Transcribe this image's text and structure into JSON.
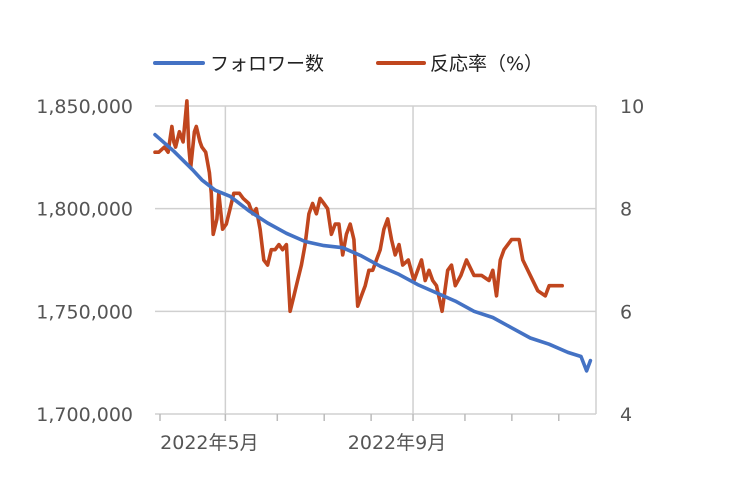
{
  "chart_data": {
    "type": "line",
    "title": "",
    "xlabel": "",
    "ylabel": "",
    "legend_position": "top-center",
    "grid": true,
    "x_tick_labels": [
      "2022年5月",
      "2022年9月"
    ],
    "y_left": {
      "range": [
        1700000,
        1850000
      ],
      "ticks": [
        1700000,
        1750000,
        1800000,
        1850000
      ],
      "tick_labels": [
        "1,700,000",
        "1,750,000",
        "1,800,000",
        "1,850,000"
      ]
    },
    "y_right": {
      "range": [
        4,
        10
      ],
      "ticks": [
        4,
        6,
        8,
        10
      ],
      "tick_labels": [
        "4",
        "6",
        "8",
        "10"
      ]
    },
    "series": [
      {
        "name": "フォロワー数",
        "axis": "left",
        "color": "#4472C4",
        "points": [
          [
            0,
            1836000
          ],
          [
            0.1,
            1828000
          ],
          [
            0.2,
            1819000
          ],
          [
            0.25,
            1814000
          ],
          [
            0.32,
            1809000
          ],
          [
            0.4,
            1806000
          ],
          [
            0.5,
            1799000
          ],
          [
            0.6,
            1793000
          ],
          [
            0.7,
            1788000
          ],
          [
            0.8,
            1784000
          ],
          [
            0.9,
            1782000
          ],
          [
            1.0,
            1781000
          ],
          [
            1.1,
            1777000
          ],
          [
            1.2,
            1772000
          ],
          [
            1.3,
            1768000
          ],
          [
            1.4,
            1763000
          ],
          [
            1.5,
            1759000
          ],
          [
            1.6,
            1755000
          ],
          [
            1.7,
            1750000
          ],
          [
            1.8,
            1747000
          ],
          [
            1.9,
            1742000
          ],
          [
            2.0,
            1737000
          ],
          [
            2.1,
            1734000
          ],
          [
            2.2,
            1730000
          ],
          [
            2.27,
            1728000
          ],
          [
            2.3,
            1721000
          ],
          [
            2.32,
            1726000
          ]
        ]
      },
      {
        "name": "反応率（%）",
        "axis": "right",
        "color": "#C0461E",
        "points": [
          [
            0,
            9.1
          ],
          [
            0.02,
            9.1
          ],
          [
            0.05,
            9.2
          ],
          [
            0.07,
            9.1
          ],
          [
            0.09,
            9.6
          ],
          [
            0.1,
            9.3
          ],
          [
            0.11,
            9.2
          ],
          [
            0.13,
            9.5
          ],
          [
            0.15,
            9.3
          ],
          [
            0.17,
            10.1
          ],
          [
            0.18,
            9.2
          ],
          [
            0.19,
            8.8
          ],
          [
            0.21,
            9.5
          ],
          [
            0.22,
            9.6
          ],
          [
            0.24,
            9.3
          ],
          [
            0.25,
            9.2
          ],
          [
            0.27,
            9.1
          ],
          [
            0.29,
            8.7
          ],
          [
            0.3,
            8.3
          ],
          [
            0.31,
            7.5
          ],
          [
            0.33,
            7.8
          ],
          [
            0.34,
            8.3
          ],
          [
            0.36,
            7.6
          ],
          [
            0.38,
            7.7
          ],
          [
            0.4,
            8.0
          ],
          [
            0.42,
            8.3
          ],
          [
            0.45,
            8.3
          ],
          [
            0.47,
            8.2
          ],
          [
            0.5,
            8.1
          ],
          [
            0.52,
            7.9
          ],
          [
            0.54,
            8.0
          ],
          [
            0.56,
            7.6
          ],
          [
            0.58,
            7.0
          ],
          [
            0.6,
            6.9
          ],
          [
            0.62,
            7.2
          ],
          [
            0.64,
            7.2
          ],
          [
            0.66,
            7.3
          ],
          [
            0.68,
            7.2
          ],
          [
            0.7,
            7.3
          ],
          [
            0.72,
            6.0
          ],
          [
            0.74,
            6.3
          ],
          [
            0.76,
            6.6
          ],
          [
            0.78,
            6.9
          ],
          [
            0.8,
            7.3
          ],
          [
            0.82,
            7.9
          ],
          [
            0.84,
            8.1
          ],
          [
            0.86,
            7.9
          ],
          [
            0.88,
            8.2
          ],
          [
            0.9,
            8.1
          ],
          [
            0.92,
            8.0
          ],
          [
            0.94,
            7.5
          ],
          [
            0.96,
            7.7
          ],
          [
            0.98,
            7.7
          ],
          [
            1.0,
            7.1
          ],
          [
            1.02,
            7.5
          ],
          [
            1.04,
            7.7
          ],
          [
            1.06,
            7.4
          ],
          [
            1.08,
            6.1
          ],
          [
            1.1,
            6.3
          ],
          [
            1.12,
            6.5
          ],
          [
            1.14,
            6.8
          ],
          [
            1.16,
            6.8
          ],
          [
            1.18,
            7.0
          ],
          [
            1.2,
            7.2
          ],
          [
            1.22,
            7.6
          ],
          [
            1.24,
            7.8
          ],
          [
            1.26,
            7.4
          ],
          [
            1.28,
            7.1
          ],
          [
            1.3,
            7.3
          ],
          [
            1.32,
            6.9
          ],
          [
            1.35,
            7.0
          ],
          [
            1.38,
            6.6
          ],
          [
            1.4,
            6.8
          ],
          [
            1.42,
            7.0
          ],
          [
            1.44,
            6.6
          ],
          [
            1.46,
            6.8
          ],
          [
            1.48,
            6.6
          ],
          [
            1.5,
            6.5
          ],
          [
            1.53,
            6.0
          ],
          [
            1.56,
            6.8
          ],
          [
            1.58,
            6.9
          ],
          [
            1.6,
            6.5
          ],
          [
            1.63,
            6.7
          ],
          [
            1.66,
            7.0
          ],
          [
            1.7,
            6.7
          ],
          [
            1.74,
            6.7
          ],
          [
            1.78,
            6.6
          ],
          [
            1.8,
            6.8
          ],
          [
            1.82,
            6.3
          ],
          [
            1.84,
            7.0
          ],
          [
            1.86,
            7.2
          ],
          [
            1.9,
            7.4
          ],
          [
            1.94,
            7.4
          ],
          [
            1.96,
            7.0
          ],
          [
            2.0,
            6.7
          ],
          [
            2.04,
            6.4
          ],
          [
            2.08,
            6.3
          ],
          [
            2.1,
            6.5
          ],
          [
            2.13,
            6.5
          ],
          [
            2.17,
            6.5
          ]
        ]
      }
    ]
  }
}
